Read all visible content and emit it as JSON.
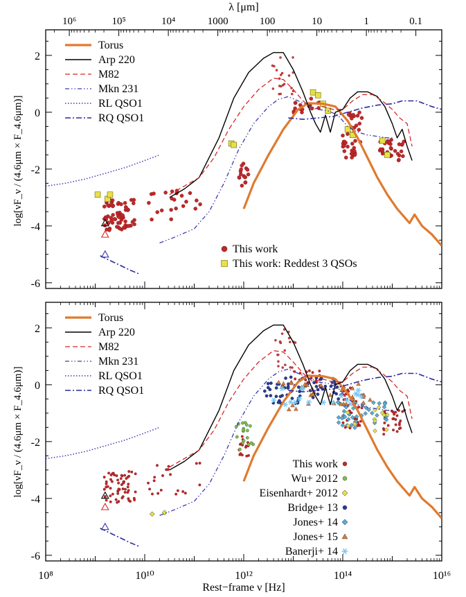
{
  "figure": {
    "top_axis_label": "λ [μm]",
    "bottom_axis_label": "Rest−frame ν [Hz]",
    "y_axis_label": "log[νF_ν / (4.6μm × F_4.6μm)]"
  },
  "chart_data": [
    {
      "type": "line",
      "panel": "top",
      "xscale": "log",
      "xlim": [
        100000000.0,
        1e+16
      ],
      "ylim": [
        -6.2,
        2.9
      ],
      "yticks": [
        -6,
        -4,
        -2,
        0,
        2
      ],
      "top_axis": {
        "label": "λ [μm]",
        "ticks": [
          "10⁶",
          "10⁵",
          "10⁴",
          "1000",
          "100",
          "10",
          "1",
          "0.1"
        ],
        "tick_values_um": [
          1000000.0,
          100000.0,
          10000.0,
          1000,
          100,
          10,
          1,
          0.1
        ]
      },
      "ylabel": "log[νF_ν / (4.6μm × F_4.6μm)]",
      "legend_upper_left": [
        {
          "label": "Torus",
          "color": "#e07a2e",
          "style": "solid-thick"
        },
        {
          "label": "Arp 220",
          "color": "#000000",
          "style": "solid"
        },
        {
          "label": "M82",
          "color": "#d62728",
          "style": "dashed"
        },
        {
          "label": "Mkn 231",
          "color": "#3a3ab0",
          "style": "dash-dot-dot"
        },
        {
          "label": "RL QSO1",
          "color": "#3a3ab0",
          "style": "dotted"
        },
        {
          "label": "RQ QSO1",
          "color": "#2a2a9a",
          "style": "dash-dot"
        }
      ],
      "legend_lower_right": [
        {
          "label": "This work",
          "color": "#c0282a",
          "marker": "circle"
        },
        {
          "label": "This work: Reddest 3 QSOs",
          "color": "#e8e04a",
          "marker": "square"
        }
      ],
      "series": [
        {
          "name": "Torus",
          "points": [
            [
              12.0,
              -3.4
            ],
            [
              12.2,
              -2.5
            ],
            [
              12.5,
              -1.5
            ],
            [
              12.8,
              -0.6
            ],
            [
              13.1,
              0.1
            ],
            [
              13.3,
              0.32
            ],
            [
              13.6,
              0.3
            ],
            [
              13.85,
              0.2
            ],
            [
              14.1,
              -0.3
            ],
            [
              14.3,
              -0.9
            ],
            [
              14.5,
              -1.6
            ],
            [
              14.7,
              -2.3
            ],
            [
              14.9,
              -2.9
            ],
            [
              15.1,
              -3.4
            ],
            [
              15.2,
              -3.6
            ],
            [
              15.35,
              -3.9
            ],
            [
              15.45,
              -3.6
            ],
            [
              15.6,
              -4.0
            ],
            [
              15.8,
              -4.3
            ],
            [
              16.0,
              -4.7
            ]
          ]
        },
        {
          "name": "Arp 220",
          "points": [
            [
              10.5,
              -3.0
            ],
            [
              10.8,
              -2.7
            ],
            [
              11.1,
              -2.3
            ],
            [
              11.5,
              -0.9
            ],
            [
              11.8,
              0.5
            ],
            [
              12.1,
              1.4
            ],
            [
              12.4,
              1.9
            ],
            [
              12.6,
              2.1
            ],
            [
              12.8,
              2.1
            ],
            [
              13.0,
              1.5
            ],
            [
              13.2,
              0.7
            ],
            [
              13.35,
              0.0
            ],
            [
              13.45,
              -0.4
            ],
            [
              13.55,
              -0.7
            ],
            [
              13.65,
              -0.1
            ],
            [
              13.75,
              -0.7
            ],
            [
              13.85,
              0.0
            ],
            [
              14.0,
              0.1
            ],
            [
              14.15,
              0.5
            ],
            [
              14.3,
              0.72
            ],
            [
              14.5,
              0.72
            ],
            [
              14.7,
              0.55
            ],
            [
              14.85,
              0.2
            ],
            [
              15.0,
              -0.4
            ],
            [
              15.1,
              -0.9
            ],
            [
              15.2,
              -0.6
            ],
            [
              15.3,
              -1.2
            ],
            [
              15.4,
              -1.7
            ]
          ]
        },
        {
          "name": "M82",
          "points": [
            [
              10.5,
              -2.9
            ],
            [
              10.8,
              -2.6
            ],
            [
              11.1,
              -2.3
            ],
            [
              11.4,
              -1.6
            ],
            [
              11.7,
              -0.6
            ],
            [
              12.0,
              0.2
            ],
            [
              12.3,
              0.8
            ],
            [
              12.6,
              1.2
            ],
            [
              12.8,
              1.15
            ],
            [
              13.0,
              0.8
            ],
            [
              13.2,
              0.4
            ],
            [
              13.4,
              0.1
            ],
            [
              13.6,
              0.2
            ],
            [
              13.8,
              0.1
            ],
            [
              14.0,
              0.1
            ],
            [
              14.2,
              0.4
            ],
            [
              14.4,
              0.62
            ],
            [
              14.6,
              0.62
            ],
            [
              14.8,
              0.4
            ],
            [
              15.0,
              0.1
            ],
            [
              15.15,
              -0.2
            ],
            [
              15.3,
              -0.4
            ],
            [
              15.4,
              -1.2
            ]
          ]
        },
        {
          "name": "Mkn 231",
          "points": [
            [
              10.3,
              -4.6
            ],
            [
              10.6,
              -4.4
            ],
            [
              11.0,
              -4.1
            ],
            [
              11.3,
              -3.5
            ],
            [
              11.6,
              -2.5
            ],
            [
              11.9,
              -1.3
            ],
            [
              12.2,
              -0.4
            ],
            [
              12.5,
              0.2
            ],
            [
              12.7,
              0.45
            ],
            [
              12.9,
              0.55
            ],
            [
              13.1,
              0.4
            ],
            [
              13.3,
              0.25
            ],
            [
              13.5,
              0.1
            ],
            [
              13.7,
              0.05
            ],
            [
              13.9,
              -0.1
            ],
            [
              14.1,
              -0.5
            ],
            [
              14.3,
              -0.7
            ],
            [
              14.5,
              -0.8
            ],
            [
              14.7,
              -0.85
            ],
            [
              14.9,
              -0.9
            ],
            [
              15.0,
              -0.9
            ]
          ]
        },
        {
          "name": "RL QSO1",
          "points": [
            [
              8.0,
              -2.6
            ],
            [
              8.4,
              -2.5
            ],
            [
              8.8,
              -2.35
            ],
            [
              9.2,
              -2.15
            ],
            [
              9.6,
              -1.95
            ],
            [
              10.0,
              -1.7
            ],
            [
              10.3,
              -1.5
            ]
          ]
        },
        {
          "name": "RQ QSO1",
          "points": [
            [
              9.1,
              -5.05
            ],
            [
              9.4,
              -5.3
            ],
            [
              9.7,
              -5.55
            ],
            [
              9.9,
              -5.7
            ]
          ]
        },
        {
          "name": "RQ QSO1",
          "points": [
            [
              12.9,
              -0.2
            ],
            [
              13.2,
              -0.25
            ],
            [
              13.5,
              -0.2
            ],
            [
              13.8,
              -0.15
            ],
            [
              14.1,
              0.0
            ],
            [
              14.4,
              0.15
            ],
            [
              14.7,
              0.25
            ],
            [
              15.0,
              0.3
            ],
            [
              15.2,
              0.4
            ],
            [
              15.5,
              0.4
            ],
            [
              15.8,
              0.2
            ],
            [
              16.0,
              0.1
            ]
          ]
        }
      ],
      "open_triangles": [
        {
          "series": "Arp 220",
          "x": 9.2,
          "y": -3.9
        },
        {
          "series": "M82",
          "x": 9.2,
          "y": -4.3
        },
        {
          "series": "Mkn 231",
          "x": 9.2,
          "y": -5.0
        }
      ]
    },
    {
      "type": "line",
      "panel": "bottom",
      "xscale": "log",
      "xlim": [
        100000000.0,
        1e+16
      ],
      "ylim": [
        -6.2,
        2.9
      ],
      "yticks": [
        -6,
        -4,
        -2,
        0,
        2
      ],
      "xticks": [
        "10⁸",
        "10¹⁰",
        "10¹²",
        "10¹⁴",
        "10¹⁶"
      ],
      "xlabel": "Rest−frame ν [Hz]",
      "ylabel": "log[νF_ν / (4.6μm × F_4.6μm)]",
      "legend_upper_left": [
        {
          "label": "Torus",
          "color": "#e07a2e",
          "style": "solid-thick"
        },
        {
          "label": "Arp 220",
          "color": "#000000",
          "style": "solid"
        },
        {
          "label": "M82",
          "color": "#d62728",
          "style": "dashed"
        },
        {
          "label": "Mkn 231",
          "color": "#3a3ab0",
          "style": "dash-dot-dot"
        },
        {
          "label": "RL QSO1",
          "color": "#3a3ab0",
          "style": "dotted"
        },
        {
          "label": "RQ QSO1",
          "color": "#2a2a9a",
          "style": "dash-dot"
        }
      ],
      "legend_lower_right": [
        {
          "label": "This work",
          "color": "#c0282a",
          "marker": "circle"
        },
        {
          "label": "Wu+ 2012",
          "color": "#7cc04a",
          "marker": "circle"
        },
        {
          "label": "Eisenhardt+ 2012",
          "color": "#e8e04a",
          "marker": "diamond"
        },
        {
          "label": "Bridge+ 13",
          "color": "#2a3a9a",
          "marker": "circle"
        },
        {
          "label": "Jones+ 14",
          "color": "#5aaed6",
          "marker": "diamond"
        },
        {
          "label": "Jones+ 15",
          "color": "#d97a3a",
          "marker": "triangle"
        },
        {
          "label": "Banerji+ 14",
          "color": "#7ac8f0",
          "marker": "asterisk"
        }
      ]
    }
  ]
}
